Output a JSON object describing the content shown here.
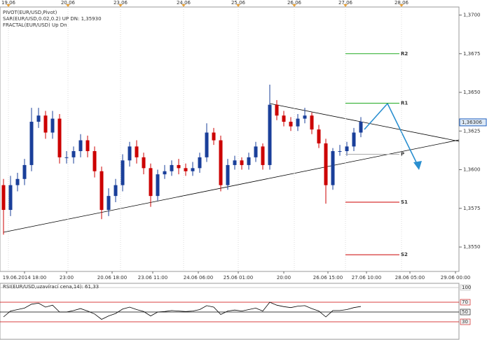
{
  "chart_data": [
    {
      "type": "candlestick",
      "legend_lines": [
        "PIVOT(EUR/USD,Pivot)",
        "SAR(EUR/USD,0.02,0.2)  UP  DN: 1,35930",
        "FRACTAL(EUR/USD)  Up  Dn"
      ],
      "legend_colors": [
        "#000000",
        "#d9534f",
        "#1f5fbf"
      ],
      "xlim": [
        -0.5,
        65
      ],
      "top_xticks": [
        {
          "value": 0.7,
          "label": "19.06"
        },
        {
          "value": 9.2,
          "label": "20.06"
        },
        {
          "value": 16.7,
          "label": "23.06"
        },
        {
          "value": 25.7,
          "label": "24.06"
        },
        {
          "value": 33.5,
          "label": "25.06"
        },
        {
          "value": 41.5,
          "label": "26.06"
        },
        {
          "value": 48.8,
          "label": "27.06"
        },
        {
          "value": 56.8,
          "label": "28.06"
        }
      ],
      "xticks": [
        {
          "value": 3,
          "label": "19.06.2014 18:00"
        },
        {
          "value": 9,
          "label": "23:00"
        },
        {
          "value": 15.5,
          "label": "20.06 18:00"
        },
        {
          "value": 21.3,
          "label": "23.06 11:00"
        },
        {
          "value": 27.8,
          "label": "24.06 06:00"
        },
        {
          "value": 33.5,
          "label": "25.06 01:00"
        },
        {
          "value": 40,
          "label": "20:00"
        },
        {
          "value": 46.3,
          "label": "26.06 15:00"
        },
        {
          "value": 51.8,
          "label": "27.06 10:00"
        },
        {
          "value": 58,
          "label": "28.06 05:00"
        },
        {
          "value": 64.5,
          "label": "29.06 00:00"
        }
      ],
      "ylim": [
        1.35342,
        1.37052
      ],
      "yticks": [
        {
          "value": 1.355,
          "label": "1,3550"
        },
        {
          "value": 1.3575,
          "label": "1,3575"
        },
        {
          "value": 1.36,
          "label": "1,3600"
        },
        {
          "value": 1.3625,
          "label": "1,3625"
        },
        {
          "value": 1.365,
          "label": "1,3650"
        },
        {
          "value": 1.3675,
          "label": "1,3675"
        },
        {
          "value": 1.37,
          "label": "1,3700"
        }
      ],
      "up_color": "#1a3f9a",
      "down_color": "#cc0000",
      "open": [
        1.359,
        1.3574,
        1.359,
        1.3594,
        1.3603,
        1.3631,
        1.3635,
        1.3624,
        1.3633,
        1.3608,
        1.3608,
        1.3612,
        1.3619,
        1.3612,
        1.3599,
        1.3574,
        1.3583,
        1.359,
        1.3606,
        1.3615,
        1.3608,
        1.3601,
        1.3583,
        1.3597,
        1.3599,
        1.3603,
        1.3601,
        1.3599,
        1.3601,
        1.3608,
        1.3624,
        1.3619,
        1.359,
        1.3603,
        1.3606,
        1.3603,
        1.3608,
        1.3615,
        1.3603,
        1.3642,
        1.3635,
        1.3631,
        1.3628,
        1.3633,
        1.3635,
        1.3626,
        1.3617,
        1.359,
        1.3612,
        1.3612,
        1.3615,
        1.3624
      ],
      "high": [
        1.3594,
        1.3596,
        1.3598,
        1.3607,
        1.364,
        1.364,
        1.3638,
        1.3638,
        1.3636,
        1.3612,
        1.3615,
        1.3623,
        1.3622,
        1.3615,
        1.3602,
        1.3588,
        1.3594,
        1.361,
        1.3618,
        1.3619,
        1.3611,
        1.3604,
        1.36,
        1.3603,
        1.3606,
        1.3607,
        1.3604,
        1.3605,
        1.3611,
        1.363,
        1.3627,
        1.3622,
        1.3607,
        1.3609,
        1.3608,
        1.3611,
        1.3618,
        1.3617,
        1.3655,
        1.3645,
        1.3638,
        1.3634,
        1.3636,
        1.364,
        1.3637,
        1.3629,
        1.362,
        1.3614,
        1.3616,
        1.3618,
        1.3627,
        1.3634
      ],
      "low": [
        1.3558,
        1.357,
        1.3586,
        1.359,
        1.3599,
        1.3627,
        1.362,
        1.362,
        1.3604,
        1.3604,
        1.3604,
        1.3608,
        1.3608,
        1.3595,
        1.3568,
        1.357,
        1.3579,
        1.3586,
        1.3602,
        1.3604,
        1.3597,
        1.3576,
        1.358,
        1.3594,
        1.3596,
        1.3597,
        1.3596,
        1.3596,
        1.3598,
        1.3605,
        1.3616,
        1.3586,
        1.3587,
        1.36,
        1.36,
        1.36,
        1.3605,
        1.36,
        1.36,
        1.3632,
        1.3628,
        1.3625,
        1.3625,
        1.363,
        1.3623,
        1.3614,
        1.3578,
        1.3587,
        1.3609,
        1.3609,
        1.3612,
        1.3621
      ],
      "close": [
        1.3574,
        1.359,
        1.3594,
        1.3603,
        1.3631,
        1.3635,
        1.3624,
        1.3633,
        1.3608,
        1.3608,
        1.3612,
        1.3619,
        1.3612,
        1.3599,
        1.3574,
        1.3583,
        1.359,
        1.3606,
        1.3615,
        1.3608,
        1.3601,
        1.3583,
        1.3597,
        1.3599,
        1.3603,
        1.3601,
        1.3599,
        1.3601,
        1.3608,
        1.3624,
        1.3619,
        1.359,
        1.3603,
        1.3606,
        1.3603,
        1.3608,
        1.3615,
        1.3603,
        1.3642,
        1.3635,
        1.3631,
        1.3628,
        1.3633,
        1.3635,
        1.3626,
        1.3617,
        1.359,
        1.3612,
        1.3612,
        1.3615,
        1.3624,
        1.3631
      ],
      "pivots": [
        {
          "name": "R2",
          "value": 1.3675,
          "color": "#22aa22"
        },
        {
          "name": "R1",
          "value": 1.3643,
          "color": "#22aa22"
        },
        {
          "name": "P",
          "value": 1.361,
          "color": "#aaaaaa"
        },
        {
          "name": "S1",
          "value": 1.3579,
          "color": "#cc0000"
        },
        {
          "name": "S2",
          "value": 1.3545,
          "color": "#cc0000"
        }
      ],
      "last_price": {
        "value": 1.36306,
        "label": "1,36306"
      }
    },
    {
      "type": "line",
      "title": "RSI(EUR/USD,uzavírací cena,14): 61,33",
      "xlim": [
        -0.5,
        65
      ],
      "ylim": [
        0,
        100
      ],
      "yticks": [
        30,
        50,
        70,
        100
      ],
      "grid_colors": [
        "#cc0000",
        "#000000",
        "#cc0000",
        "#bbbbbb"
      ],
      "series": [
        {
          "color": "#000000",
          "values": [
            40,
            52,
            55,
            58,
            66,
            68,
            60,
            64,
            50,
            50,
            53,
            57,
            52,
            46,
            35,
            42,
            47,
            56,
            60,
            55,
            51,
            42,
            50,
            51,
            53,
            52,
            51,
            52,
            55,
            63,
            60,
            45,
            52,
            54,
            52,
            55,
            58,
            52,
            70,
            64,
            61,
            59,
            62,
            63,
            57,
            52,
            40,
            53,
            53,
            55,
            59,
            61.33
          ]
        }
      ]
    }
  ]
}
